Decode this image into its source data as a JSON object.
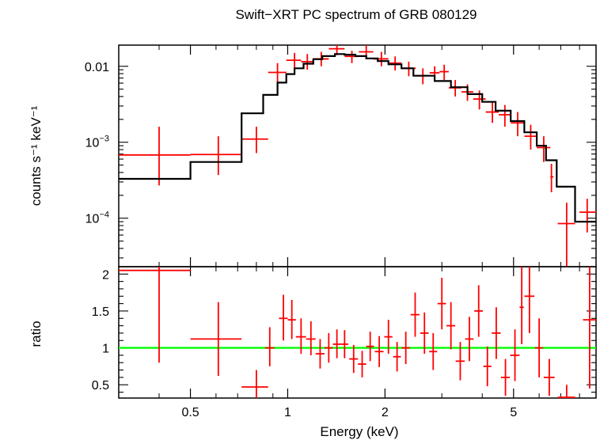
{
  "chart_data": {
    "type": "scatter",
    "title": "Swift−XRT PC spectrum of GRB 080129",
    "xlabel": "Energy (keV)",
    "x_scale": "log",
    "xlim": [
      0.3,
      9.0
    ],
    "x_ticks": [
      {
        "value": 0.5,
        "label": "0.5"
      },
      {
        "value": 1,
        "label": "1"
      },
      {
        "value": 2,
        "label": "2"
      },
      {
        "value": 5,
        "label": "5"
      }
    ],
    "panels": [
      {
        "name": "spectrum",
        "ylabel": "counts s⁻¹ keV⁻¹",
        "y_scale": "log",
        "ylim": [
          2.3e-05,
          0.019
        ],
        "y_ticks": [
          {
            "value": 0.01,
            "base": "0.01",
            "exp": ""
          },
          {
            "value": 0.001,
            "base": "10",
            "exp": "−3"
          },
          {
            "value": 0.0001,
            "base": "10",
            "exp": "−4"
          }
        ],
        "series": [
          {
            "kind": "data",
            "color": "#ff0000",
            "points": [
              {
                "x": 0.4,
                "xlo": 0.3,
                "xhi": 0.5,
                "y": 0.00068,
                "ylo": 0.00027,
                "yhi": 0.0016
              },
              {
                "x": 0.61,
                "xlo": 0.5,
                "xhi": 0.72,
                "y": 0.00069,
                "ylo": 0.00037,
                "yhi": 0.0012
              },
              {
                "x": 0.8,
                "xlo": 0.72,
                "xhi": 0.87,
                "y": 0.0011,
                "ylo": 0.00072,
                "yhi": 0.0016
              },
              {
                "x": 0.93,
                "xlo": 0.87,
                "xhi": 0.99,
                "y": 0.0083,
                "ylo": 0.0061,
                "yhi": 0.011
              },
              {
                "x": 1.05,
                "xlo": 0.99,
                "xhi": 1.1,
                "y": 0.012,
                "ylo": 0.0095,
                "yhi": 0.015
              },
              {
                "x": 1.15,
                "xlo": 1.1,
                "xhi": 1.2,
                "y": 0.0115,
                "ylo": 0.009,
                "yhi": 0.0145
              },
              {
                "x": 1.27,
                "xlo": 1.2,
                "xhi": 1.34,
                "y": 0.0125,
                "ylo": 0.01,
                "yhi": 0.0155
              },
              {
                "x": 1.42,
                "xlo": 1.34,
                "xhi": 1.5,
                "y": 0.017,
                "ylo": 0.014,
                "yhi": 0.02
              },
              {
                "x": 1.58,
                "xlo": 1.5,
                "xhi": 1.66,
                "y": 0.0135,
                "ylo": 0.011,
                "yhi": 0.016
              },
              {
                "x": 1.75,
                "xlo": 1.66,
                "xhi": 1.84,
                "y": 0.0155,
                "ylo": 0.0125,
                "yhi": 0.019
              },
              {
                "x": 1.95,
                "xlo": 1.84,
                "xhi": 2.05,
                "y": 0.0125,
                "ylo": 0.01,
                "yhi": 0.0155
              },
              {
                "x": 2.15,
                "xlo": 2.05,
                "xhi": 2.25,
                "y": 0.011,
                "ylo": 0.0088,
                "yhi": 0.0135
              },
              {
                "x": 2.37,
                "xlo": 2.25,
                "xhi": 2.49,
                "y": 0.0094,
                "ylo": 0.0074,
                "yhi": 0.0115
              },
              {
                "x": 2.62,
                "xlo": 2.49,
                "xhi": 2.75,
                "y": 0.0075,
                "ylo": 0.0058,
                "yhi": 0.0094
              },
              {
                "x": 2.85,
                "xlo": 2.75,
                "xhi": 2.95,
                "y": 0.0082,
                "ylo": 0.0064,
                "yhi": 0.01
              },
              {
                "x": 3.05,
                "xlo": 2.95,
                "xhi": 3.15,
                "y": 0.0085,
                "ylo": 0.0066,
                "yhi": 0.0105
              },
              {
                "x": 3.3,
                "xlo": 3.15,
                "xhi": 3.45,
                "y": 0.0052,
                "ylo": 0.004,
                "yhi": 0.0066
              },
              {
                "x": 3.6,
                "xlo": 3.45,
                "xhi": 3.75,
                "y": 0.0046,
                "ylo": 0.0035,
                "yhi": 0.0058
              },
              {
                "x": 3.92,
                "xlo": 3.75,
                "xhi": 4.1,
                "y": 0.0037,
                "ylo": 0.0027,
                "yhi": 0.0048
              },
              {
                "x": 4.3,
                "xlo": 4.1,
                "xhi": 4.5,
                "y": 0.0025,
                "ylo": 0.0018,
                "yhi": 0.0034
              },
              {
                "x": 4.7,
                "xlo": 4.5,
                "xhi": 4.9,
                "y": 0.0023,
                "ylo": 0.0016,
                "yhi": 0.0031
              },
              {
                "x": 5.15,
                "xlo": 4.9,
                "xhi": 5.4,
                "y": 0.0018,
                "ylo": 0.0012,
                "yhi": 0.0025
              },
              {
                "x": 5.65,
                "xlo": 5.4,
                "xhi": 5.9,
                "y": 0.0012,
                "ylo": 0.0008,
                "yhi": 0.0017
              },
              {
                "x": 6.2,
                "xlo": 5.9,
                "xhi": 6.5,
                "y": 0.00085,
                "ylo": 0.00055,
                "yhi": 0.0012
              },
              {
                "x": 6.55,
                "xlo": 6.5,
                "xhi": 6.65,
                "y": 0.00035,
                "ylo": 0.00022,
                "yhi": 0.00052
              },
              {
                "x": 7.3,
                "xlo": 6.85,
                "xhi": 7.75,
                "y": 8.5e-05,
                "ylo": 2.3e-05,
                "yhi": 0.00016
              },
              {
                "x": 8.45,
                "xlo": 8.0,
                "xhi": 9.0,
                "y": 0.00012,
                "ylo": 6.5e-05,
                "yhi": 0.00018
              }
            ]
          },
          {
            "kind": "model",
            "color": "#000000",
            "steps": [
              {
                "x": 0.3,
                "y": 0.00033
              },
              {
                "x": 0.5,
                "y": 0.00055
              },
              {
                "x": 0.72,
                "y": 0.0024
              },
              {
                "x": 0.84,
                "y": 0.0042
              },
              {
                "x": 0.93,
                "y": 0.0061
              },
              {
                "x": 0.99,
                "y": 0.0079
              },
              {
                "x": 1.05,
                "y": 0.0094
              },
              {
                "x": 1.12,
                "y": 0.0108
              },
              {
                "x": 1.2,
                "y": 0.0124
              },
              {
                "x": 1.28,
                "y": 0.0136
              },
              {
                "x": 1.4,
                "y": 0.0145
              },
              {
                "x": 1.5,
                "y": 0.0142
              },
              {
                "x": 1.62,
                "y": 0.0136
              },
              {
                "x": 1.75,
                "y": 0.0127
              },
              {
                "x": 1.9,
                "y": 0.0117
              },
              {
                "x": 2.05,
                "y": 0.0106
              },
              {
                "x": 2.25,
                "y": 0.0094
              },
              {
                "x": 2.45,
                "y": 0.0075
              },
              {
                "x": 2.85,
                "y": 0.0064
              },
              {
                "x": 3.2,
                "y": 0.0053
              },
              {
                "x": 3.6,
                "y": 0.0043
              },
              {
                "x": 4.0,
                "y": 0.0034
              },
              {
                "x": 4.4,
                "y": 0.0026
              },
              {
                "x": 4.9,
                "y": 0.0019
              },
              {
                "x": 5.4,
                "y": 0.00135
              },
              {
                "x": 5.9,
                "y": 0.0009
              },
              {
                "x": 6.3,
                "y": 0.00058
              },
              {
                "x": 6.8,
                "y": 0.00026
              },
              {
                "x": 7.75,
                "y": 9e-05
              },
              {
                "x": 9.0,
                "y": 9e-05
              }
            ]
          }
        ]
      },
      {
        "name": "ratio",
        "ylabel": "ratio",
        "y_scale": "linear",
        "ylim": [
          0.32,
          2.1
        ],
        "y_ticks": [
          {
            "value": 0.5,
            "label": "0.5"
          },
          {
            "value": 1,
            "label": "1"
          },
          {
            "value": 1.5,
            "label": "1.5"
          },
          {
            "value": 2,
            "label": "2"
          }
        ],
        "reference_line": {
          "y": 1,
          "color": "#00ff00"
        },
        "series": [
          {
            "kind": "data",
            "color": "#ff0000",
            "points": [
              {
                "x": 0.4,
                "xlo": 0.3,
                "xhi": 0.5,
                "y": 2.05,
                "ylo": 0.8,
                "yhi": 2.2
              },
              {
                "x": 0.61,
                "xlo": 0.5,
                "xhi": 0.72,
                "y": 1.12,
                "ylo": 0.62,
                "yhi": 1.62
              },
              {
                "x": 0.8,
                "xlo": 0.72,
                "xhi": 0.87,
                "y": 0.47,
                "ylo": 0.32,
                "yhi": 0.7
              },
              {
                "x": 0.88,
                "xlo": 0.85,
                "xhi": 0.91,
                "y": 1.0,
                "ylo": 0.75,
                "yhi": 1.28
              },
              {
                "x": 0.97,
                "xlo": 0.94,
                "xhi": 1.0,
                "y": 1.4,
                "ylo": 1.1,
                "yhi": 1.72
              },
              {
                "x": 1.03,
                "xlo": 1.0,
                "xhi": 1.06,
                "y": 1.38,
                "ylo": 1.12,
                "yhi": 1.65
              },
              {
                "x": 1.1,
                "xlo": 1.06,
                "xhi": 1.14,
                "y": 1.15,
                "ylo": 0.92,
                "yhi": 1.4
              },
              {
                "x": 1.18,
                "xlo": 1.14,
                "xhi": 1.22,
                "y": 1.12,
                "ylo": 0.9,
                "yhi": 1.36
              },
              {
                "x": 1.26,
                "xlo": 1.22,
                "xhi": 1.3,
                "y": 0.92,
                "ylo": 0.72,
                "yhi": 1.12
              },
              {
                "x": 1.34,
                "xlo": 1.3,
                "xhi": 1.38,
                "y": 1.0,
                "ylo": 0.8,
                "yhi": 1.2
              },
              {
                "x": 1.42,
                "xlo": 1.38,
                "xhi": 1.46,
                "y": 1.05,
                "ylo": 0.86,
                "yhi": 1.25
              },
              {
                "x": 1.5,
                "xlo": 1.46,
                "xhi": 1.54,
                "y": 1.05,
                "ylo": 0.86,
                "yhi": 1.24
              },
              {
                "x": 1.6,
                "xlo": 1.55,
                "xhi": 1.65,
                "y": 0.85,
                "ylo": 0.66,
                "yhi": 1.04
              },
              {
                "x": 1.7,
                "xlo": 1.65,
                "xhi": 1.75,
                "y": 0.78,
                "ylo": 0.6,
                "yhi": 0.96
              },
              {
                "x": 1.8,
                "xlo": 1.75,
                "xhi": 1.85,
                "y": 1.02,
                "ylo": 0.82,
                "yhi": 1.22
              },
              {
                "x": 1.92,
                "xlo": 1.86,
                "xhi": 1.98,
                "y": 0.95,
                "ylo": 0.74,
                "yhi": 1.16
              },
              {
                "x": 2.05,
                "xlo": 1.99,
                "xhi": 2.11,
                "y": 1.15,
                "ylo": 0.92,
                "yhi": 1.38
              },
              {
                "x": 2.18,
                "xlo": 2.12,
                "xhi": 2.24,
                "y": 0.88,
                "ylo": 0.68,
                "yhi": 1.08
              },
              {
                "x": 2.32,
                "xlo": 2.25,
                "xhi": 2.39,
                "y": 1.0,
                "ylo": 0.78,
                "yhi": 1.22
              },
              {
                "x": 2.48,
                "xlo": 2.4,
                "xhi": 2.56,
                "y": 1.45,
                "ylo": 1.15,
                "yhi": 1.75
              },
              {
                "x": 2.65,
                "xlo": 2.57,
                "xhi": 2.73,
                "y": 1.2,
                "ylo": 0.92,
                "yhi": 1.48
              },
              {
                "x": 2.82,
                "xlo": 2.74,
                "xhi": 2.9,
                "y": 0.95,
                "ylo": 0.7,
                "yhi": 1.2
              },
              {
                "x": 3.0,
                "xlo": 2.91,
                "xhi": 3.09,
                "y": 1.6,
                "ylo": 1.25,
                "yhi": 1.95
              },
              {
                "x": 3.2,
                "xlo": 3.1,
                "xhi": 3.3,
                "y": 1.3,
                "ylo": 0.98,
                "yhi": 1.62
              },
              {
                "x": 3.42,
                "xlo": 3.31,
                "xhi": 3.53,
                "y": 0.82,
                "ylo": 0.56,
                "yhi": 1.08
              },
              {
                "x": 3.65,
                "xlo": 3.54,
                "xhi": 3.76,
                "y": 1.12,
                "ylo": 0.82,
                "yhi": 1.42
              },
              {
                "x": 3.9,
                "xlo": 3.78,
                "xhi": 4.02,
                "y": 1.5,
                "ylo": 1.15,
                "yhi": 1.85
              },
              {
                "x": 4.15,
                "xlo": 4.03,
                "xhi": 4.27,
                "y": 0.75,
                "ylo": 0.48,
                "yhi": 1.02
              },
              {
                "x": 4.42,
                "xlo": 4.28,
                "xhi": 4.56,
                "y": 1.2,
                "ylo": 0.85,
                "yhi": 1.55
              },
              {
                "x": 4.72,
                "xlo": 4.57,
                "xhi": 4.87,
                "y": 0.6,
                "ylo": 0.35,
                "yhi": 0.85
              },
              {
                "x": 5.05,
                "xlo": 4.88,
                "xhi": 5.22,
                "y": 0.9,
                "ylo": 0.55,
                "yhi": 1.25
              },
              {
                "x": 5.3,
                "xlo": 5.22,
                "xhi": 5.38,
                "y": 1.55,
                "ylo": 1.05,
                "yhi": 2.1
              },
              {
                "x": 5.6,
                "xlo": 5.4,
                "xhi": 5.8,
                "y": 1.7,
                "ylo": 1.2,
                "yhi": 2.1
              },
              {
                "x": 6.0,
                "xlo": 5.82,
                "xhi": 6.18,
                "y": 1.0,
                "ylo": 0.6,
                "yhi": 1.4
              },
              {
                "x": 6.45,
                "xlo": 6.2,
                "xhi": 6.7,
                "y": 0.6,
                "ylo": 0.35,
                "yhi": 0.85
              },
              {
                "x": 7.3,
                "xlo": 6.85,
                "xhi": 7.75,
                "y": 0.33,
                "ylo": 0.32,
                "yhi": 0.5
              },
              {
                "x": 8.6,
                "xlo": 8.2,
                "xhi": 9.0,
                "y": 1.38,
                "ylo": 0.45,
                "yhi": 2.1
              }
            ]
          }
        ]
      }
    ]
  }
}
